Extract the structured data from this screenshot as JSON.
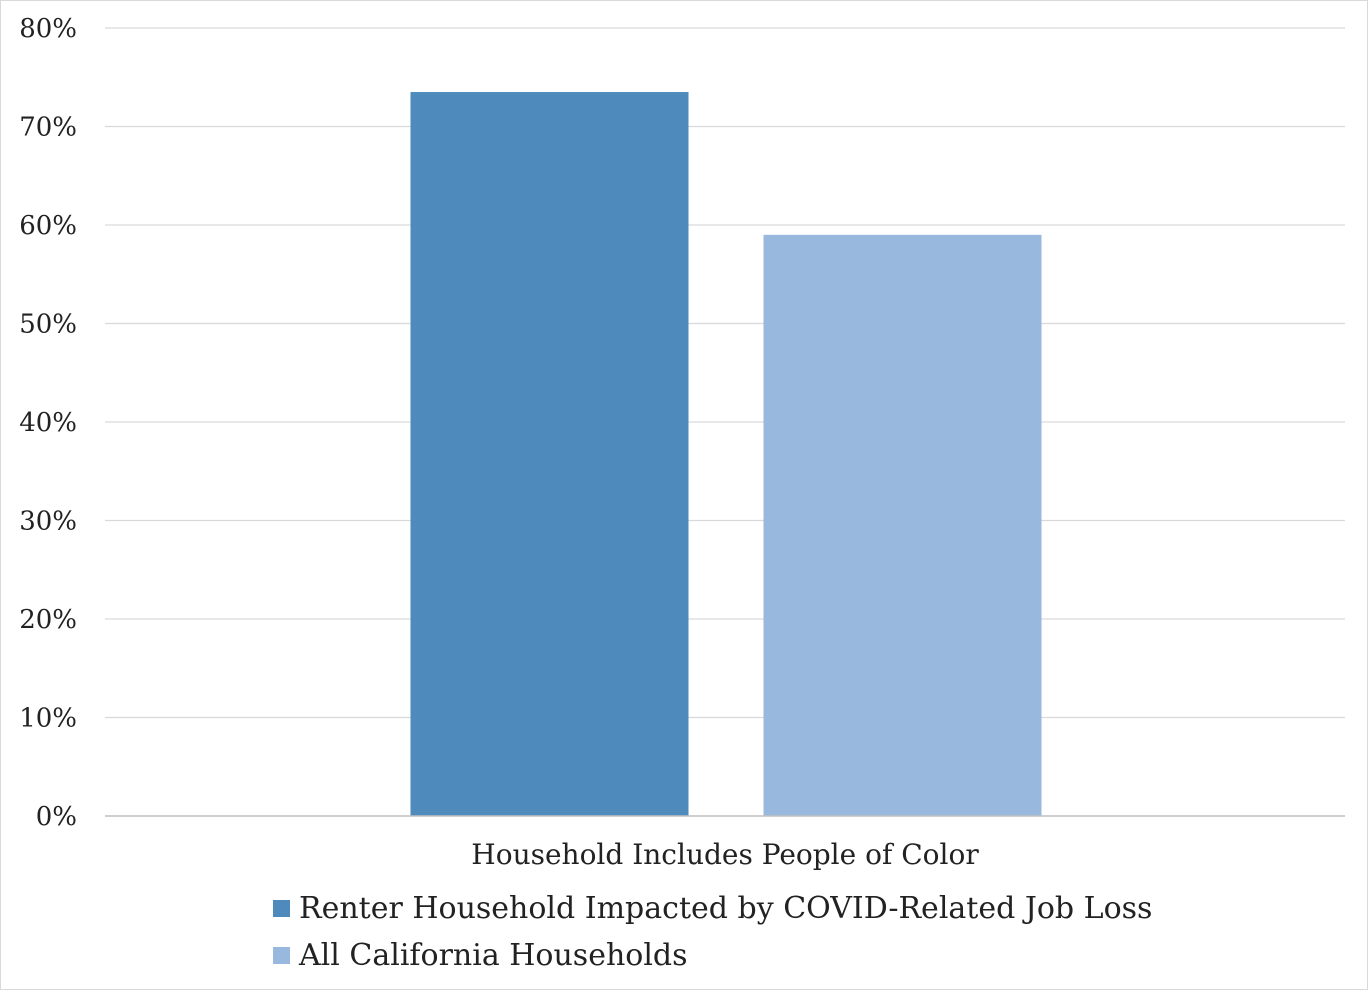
{
  "chart_data": {
    "type": "bar",
    "categories": [
      "Household Includes People of Color"
    ],
    "series": [
      {
        "name": "Renter Household Impacted by COVID-Related Job Loss",
        "values": [
          73.5
        ],
        "color": "#4f8abd"
      },
      {
        "name": "All California Households",
        "values": [
          59
        ],
        "color": "#98b8de"
      }
    ],
    "ylim": [
      0,
      80
    ],
    "yticks": [
      0,
      10,
      20,
      30,
      40,
      50,
      60,
      70,
      80
    ],
    "ytick_labels": [
      "0%",
      "10%",
      "20%",
      "30%",
      "40%",
      "50%",
      "60%",
      "70%",
      "80%"
    ],
    "grid": true,
    "legend_position": "bottom",
    "colors": {
      "gridline": "#d9d9d9",
      "axis": "#bfbfbf"
    }
  }
}
